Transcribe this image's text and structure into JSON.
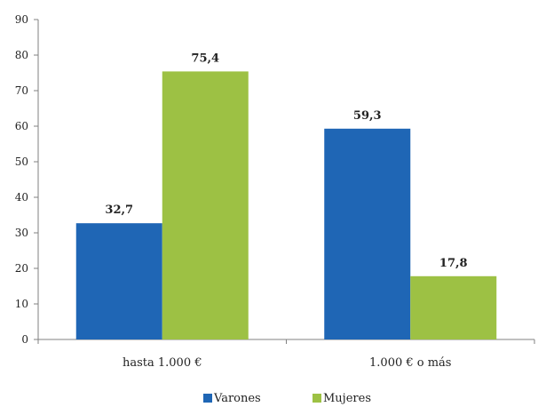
{
  "chart_data": {
    "type": "bar",
    "categories": [
      "hasta 1.000 €",
      "1.000 € o más"
    ],
    "series": [
      {
        "name": "Varones",
        "values": [
          32.7,
          59.3
        ],
        "labels": [
          "32,7",
          "59,3"
        ],
        "color": "#1f66b5"
      },
      {
        "name": "Mujeres",
        "values": [
          75.4,
          17.8
        ],
        "labels": [
          "75,4",
          "17,8"
        ],
        "color": "#9dc144"
      }
    ],
    "ylim": [
      0,
      90
    ],
    "yticks": [
      "0",
      "10",
      "20",
      "30",
      "40",
      "50",
      "60",
      "70",
      "80",
      "90"
    ],
    "ytick_step": 10,
    "grid": false,
    "legend_position": "bottom"
  }
}
